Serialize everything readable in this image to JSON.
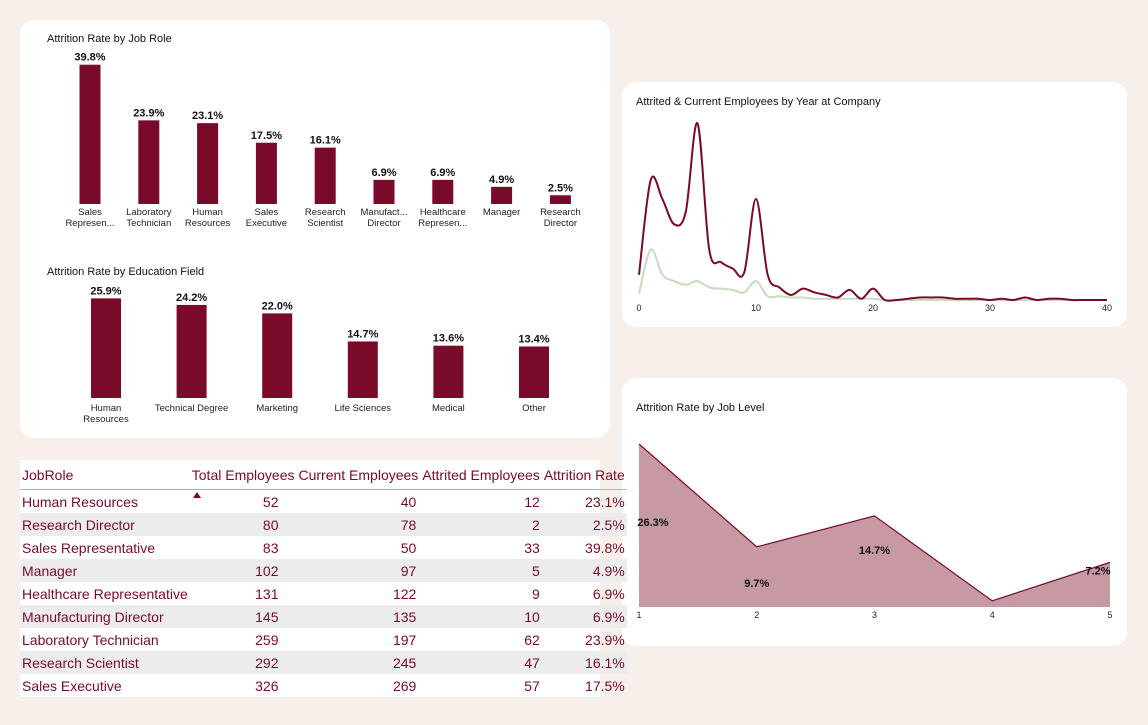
{
  "colors": {
    "primary": "#7a0a2a",
    "secondary": "#c5dcbf",
    "area_fill": "#c79aa3",
    "background": "#f7f0ea"
  },
  "chart_data": [
    {
      "id": "job_role",
      "type": "bar",
      "title": "Attrition Rate by Job Role",
      "categories": [
        [
          "Sales",
          "Represen..."
        ],
        [
          "Laboratory",
          "Technician"
        ],
        [
          "Human",
          "Resources"
        ],
        [
          "Sales",
          "Executive"
        ],
        [
          "Research",
          "Scientist"
        ],
        [
          "Manufact...",
          "Director"
        ],
        [
          "Healthcare",
          "Represen..."
        ],
        [
          "Manager"
        ],
        [
          "Research",
          "Director"
        ]
      ],
      "values": [
        39.8,
        23.9,
        23.1,
        17.5,
        16.1,
        6.9,
        6.9,
        4.9,
        2.5
      ],
      "labels": [
        "39.8%",
        "23.9%",
        "23.1%",
        "17.5%",
        "16.1%",
        "6.9%",
        "6.9%",
        "4.9%",
        "2.5%"
      ],
      "ylim": [
        0,
        40
      ]
    },
    {
      "id": "education",
      "type": "bar",
      "title": "Attrition Rate by Education Field",
      "categories": [
        [
          "Human",
          "Resources"
        ],
        [
          "Technical Degree"
        ],
        [
          "Marketing"
        ],
        [
          "Life Sciences"
        ],
        [
          "Medical"
        ],
        [
          "Other"
        ]
      ],
      "values": [
        25.9,
        24.2,
        22.0,
        14.7,
        13.6,
        13.4
      ],
      "labels": [
        "25.9%",
        "24.2%",
        "22.0%",
        "14.7%",
        "13.6%",
        "13.4%"
      ],
      "ylim": [
        0,
        26
      ]
    },
    {
      "id": "years",
      "type": "line",
      "title": "Attrited & Current Employees by Year at Company",
      "xlim": [
        0,
        40
      ],
      "xticks": [
        "0",
        "10",
        "20",
        "30",
        "40"
      ],
      "ylim": [
        0,
        145
      ],
      "series": [
        {
          "name": "Attrited",
          "color": "#7a0a2a",
          "x": [
            0,
            1,
            2,
            3,
            4,
            5,
            6,
            7,
            8,
            9,
            10,
            11,
            12,
            13,
            14,
            15,
            16,
            17,
            18,
            19,
            20,
            21,
            22,
            23,
            24,
            25,
            26,
            27,
            28,
            29,
            30,
            31,
            32,
            33,
            34,
            35,
            36,
            37,
            38,
            39,
            40
          ],
          "y": [
            20,
            95,
            80,
            60,
            70,
            140,
            40,
            30,
            25,
            22,
            80,
            20,
            10,
            4,
            9,
            6,
            4,
            2,
            8,
            1,
            9,
            0,
            0,
            1,
            2,
            2,
            2,
            1,
            1,
            1,
            0,
            1,
            0,
            2,
            0,
            1,
            1,
            0,
            0,
            0,
            0
          ]
        },
        {
          "name": "Current",
          "color": "#c5dcbf",
          "x": [
            0,
            1,
            2,
            3,
            4,
            5,
            6,
            7,
            8,
            9,
            10,
            11,
            12,
            13,
            14,
            15,
            16,
            17,
            18,
            19,
            20,
            21,
            22,
            23,
            24,
            25,
            26,
            27,
            28,
            29,
            30,
            31,
            32,
            33,
            34,
            35,
            36,
            37,
            38,
            39,
            40
          ],
          "y": [
            5,
            40,
            20,
            15,
            12,
            15,
            10,
            9,
            8,
            6,
            15,
            3,
            3,
            2,
            2,
            1,
            1,
            1,
            1,
            1,
            1,
            0,
            0,
            0,
            0,
            0,
            0,
            0,
            0,
            0,
            0,
            0,
            0,
            0,
            0,
            0,
            0,
            0,
            0,
            0,
            0
          ]
        }
      ]
    },
    {
      "id": "job_level",
      "type": "area",
      "title": "Attrition Rate by Job Level",
      "x": [
        1,
        2,
        3,
        4,
        5
      ],
      "values": [
        26.3,
        9.7,
        14.7,
        1.0,
        7.2
      ],
      "labels": [
        "26.3%",
        "9.7%",
        "14.7%",
        "",
        "7.2%"
      ],
      "xticks": [
        "1",
        "2",
        "3",
        "4",
        "5"
      ],
      "ylim": [
        0,
        26.3
      ]
    }
  ],
  "table": {
    "columns": [
      "JobRole",
      "Total Employees",
      "Current Employees",
      "Attrited Employees",
      "Attrition Rate"
    ],
    "rows": [
      [
        "Human Resources",
        "52",
        "40",
        "12",
        "23.1%"
      ],
      [
        "Research Director",
        "80",
        "78",
        "2",
        "2.5%"
      ],
      [
        "Sales Representative",
        "83",
        "50",
        "33",
        "39.8%"
      ],
      [
        "Manager",
        "102",
        "97",
        "5",
        "4.9%"
      ],
      [
        "Healthcare Representative",
        "131",
        "122",
        "9",
        "6.9%"
      ],
      [
        "Manufacturing Director",
        "145",
        "135",
        "10",
        "6.9%"
      ],
      [
        "Laboratory Technician",
        "259",
        "197",
        "62",
        "23.9%"
      ],
      [
        "Research Scientist",
        "292",
        "245",
        "47",
        "16.1%"
      ],
      [
        "Sales Executive",
        "326",
        "269",
        "57",
        "17.5%"
      ]
    ]
  }
}
